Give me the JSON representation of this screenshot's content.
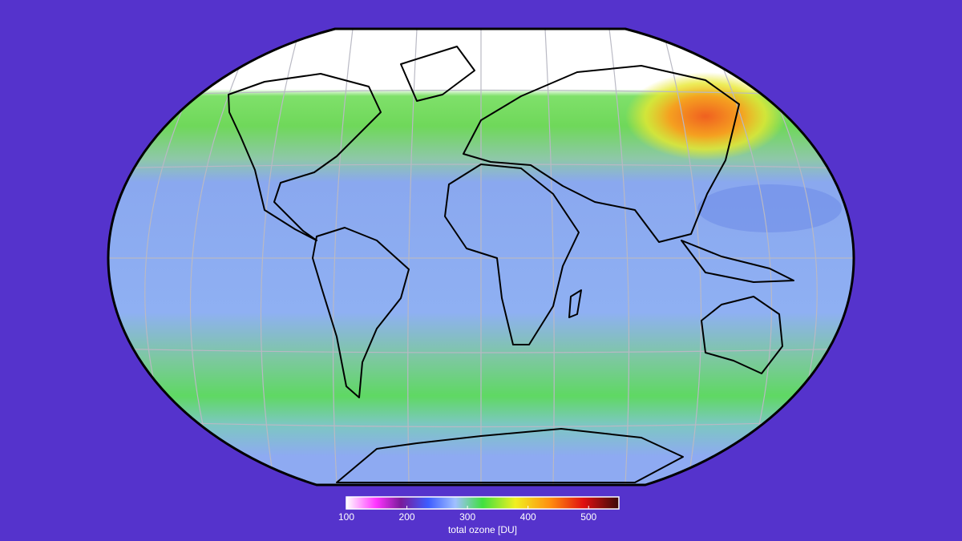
{
  "colorbar": {
    "label": "total ozone [DU]",
    "range": [
      100,
      550
    ],
    "ticks": [
      100,
      200,
      300,
      400,
      500
    ]
  }
}
